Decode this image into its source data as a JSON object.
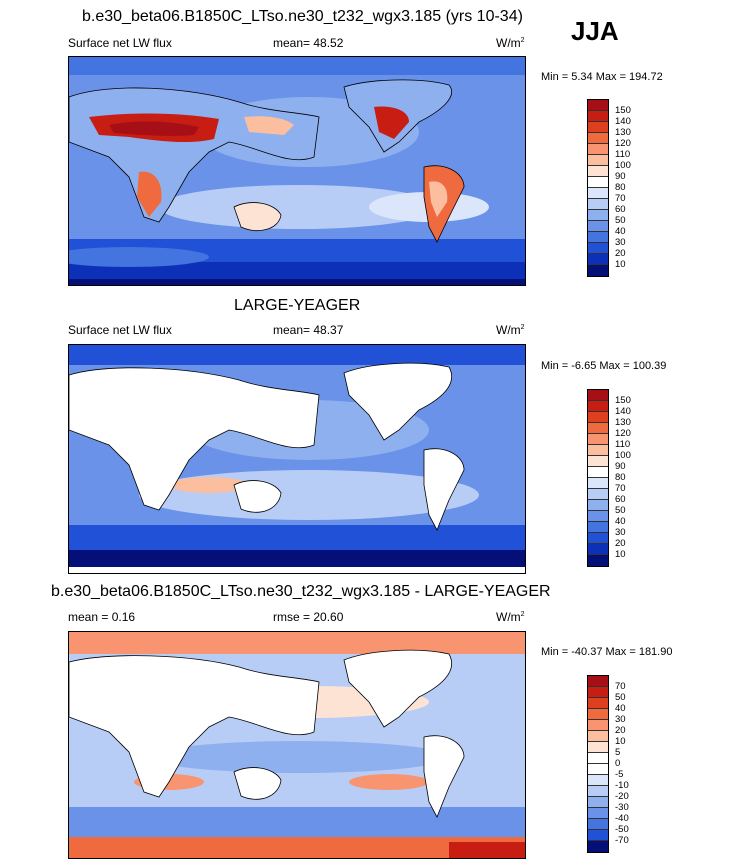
{
  "header": {
    "title": "b.e30_beta06.B1850C_LTso.ne30_t232_wgx3.185 (yrs 10-34)",
    "season": "JJA"
  },
  "panels": [
    {
      "title": "",
      "left_label": "Surface net LW flux",
      "center_label": "mean=  48.52",
      "units": "W/m",
      "units_sup": "2",
      "minmax": "Min =   5.34 Max = 194.72",
      "colorbar": {
        "labels": [
          "150",
          "140",
          "130",
          "120",
          "110",
          "100",
          "90",
          "80",
          "70",
          "60",
          "50",
          "40",
          "30",
          "20",
          "10"
        ],
        "colors": [
          "#a50f15",
          "#c81d12",
          "#de3f1f",
          "#ef6a3f",
          "#f89570",
          "#fbbf9f",
          "#fde3d4",
          "#ffffff",
          "#dbe6fb",
          "#b8cdf6",
          "#8fb0ef",
          "#6a92e8",
          "#4474e0",
          "#2051d6",
          "#0c31b8",
          "#040f78"
        ]
      }
    },
    {
      "title": "LARGE-YEAGER",
      "left_label": "Surface net LW flux",
      "center_label": "mean=  48.37",
      "units": "W/m",
      "units_sup": "2",
      "minmax": "Min =  -6.65 Max = 100.39",
      "colorbar": {
        "labels": [
          "150",
          "140",
          "130",
          "120",
          "110",
          "100",
          "90",
          "80",
          "70",
          "60",
          "50",
          "40",
          "30",
          "20",
          "10"
        ],
        "colors": [
          "#a50f15",
          "#c81d12",
          "#de3f1f",
          "#ef6a3f",
          "#f89570",
          "#fbbf9f",
          "#fde3d4",
          "#ffffff",
          "#dbe6fb",
          "#b8cdf6",
          "#8fb0ef",
          "#6a92e8",
          "#4474e0",
          "#2051d6",
          "#0c31b8",
          "#040f78"
        ]
      }
    },
    {
      "title": "b.e30_beta06.B1850C_LTso.ne30_t232_wgx3.185 - LARGE-YEAGER",
      "left_label": "mean =   0.16",
      "center_label": "rmse =  20.60",
      "units": "W/m",
      "units_sup": "2",
      "minmax": "Min = -40.37 Max = 181.90",
      "colorbar": {
        "labels": [
          "70",
          "50",
          "40",
          "30",
          "20",
          "10",
          "5",
          "0",
          "-5",
          "-10",
          "-20",
          "-30",
          "-40",
          "-50",
          "-70"
        ],
        "colors": [
          "#a50f15",
          "#c81d12",
          "#de3f1f",
          "#ef6a3f",
          "#f89570",
          "#fbbf9f",
          "#fde3d4",
          "#ffffff",
          "#ffffff",
          "#dbe6fb",
          "#b8cdf6",
          "#8fb0ef",
          "#6a92e8",
          "#4474e0",
          "#2051d6",
          "#040f78"
        ]
      }
    }
  ]
}
